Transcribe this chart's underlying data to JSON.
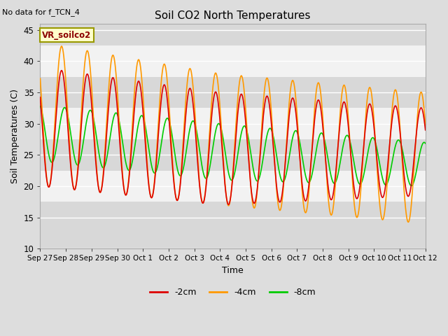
{
  "title": "Soil CO2 North Temperatures",
  "no_data_label": "No data for f_TCN_4",
  "xlabel": "Time",
  "ylabel": "Soil Temperatures (C)",
  "ylim": [
    10,
    46
  ],
  "yticks": [
    10,
    15,
    20,
    25,
    30,
    35,
    40,
    45
  ],
  "legend_label": "VR_soilco2",
  "bg_color": "#dddddd",
  "plot_bg_light": "#f2f2f2",
  "plot_bg_dark": "#e0e0e0",
  "line_colors": {
    "m2cm": "#dd0000",
    "m4cm": "#ff9900",
    "m8cm": "#00cc00"
  },
  "line_width": 1.2,
  "x_tick_labels": [
    "Sep 27",
    "Sep 28",
    "Sep 29",
    "Sep 30",
    "Oct 1",
    "Oct 2",
    "Oct 3",
    "Oct 4",
    "Oct 5",
    "Oct 6",
    "Oct 7",
    "Oct 8",
    "Oct 9",
    "Oct 10",
    "Oct 11",
    "Oct 12"
  ],
  "days": 15
}
